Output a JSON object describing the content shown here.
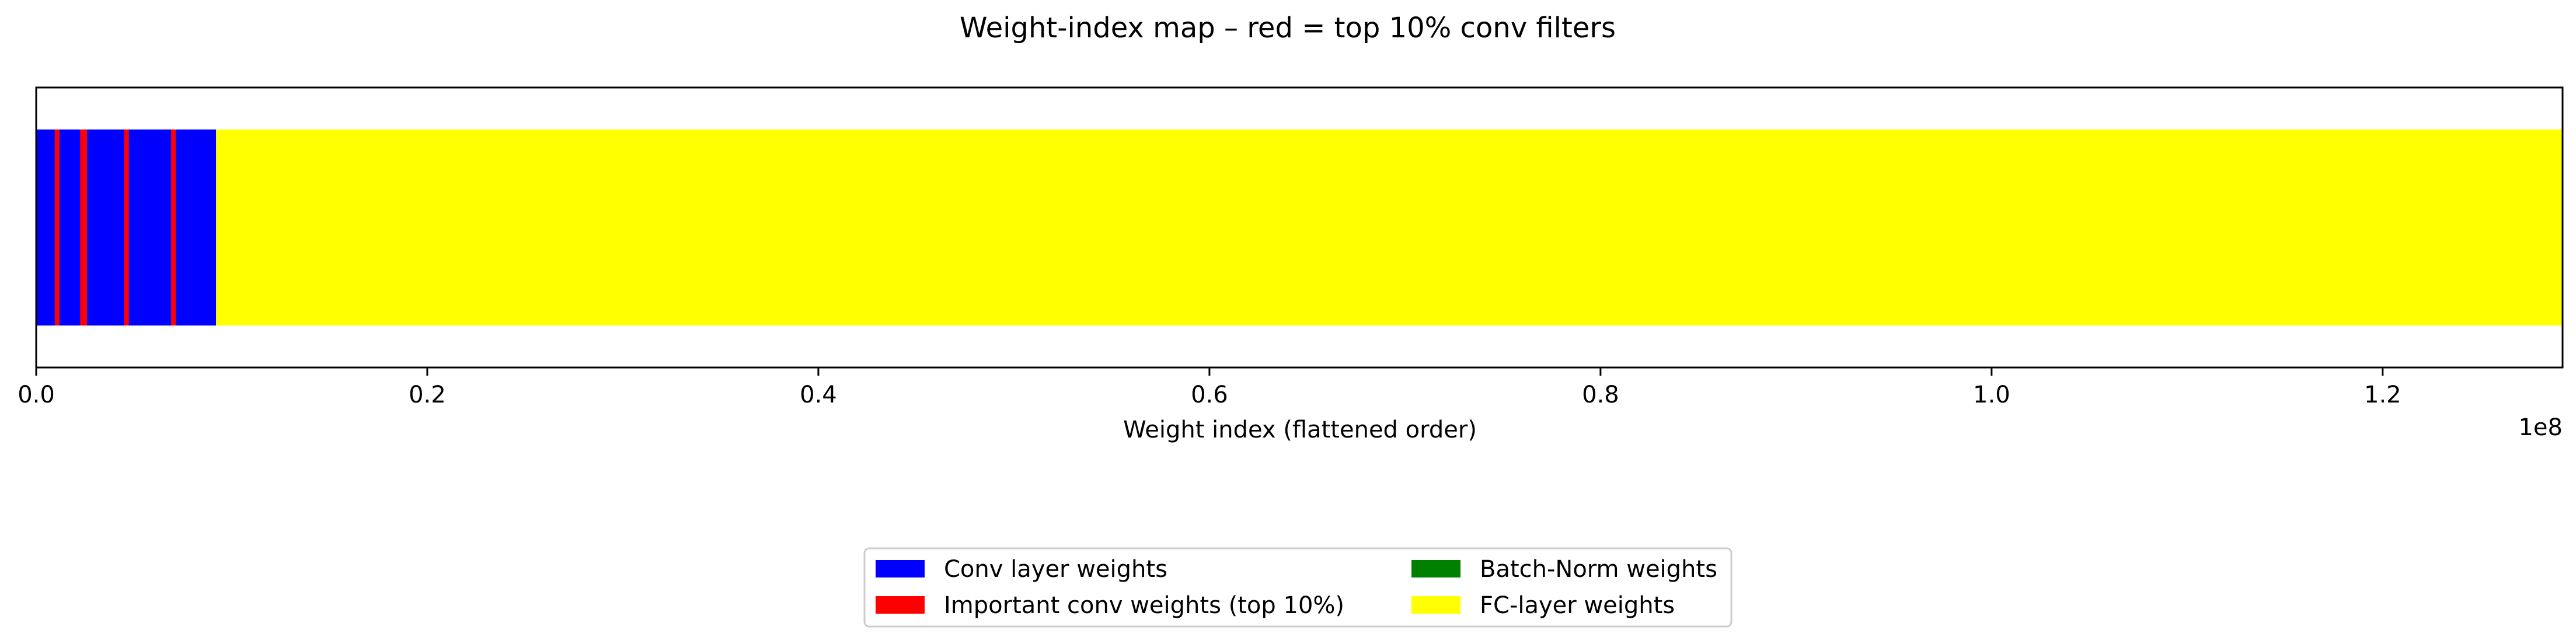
{
  "chart_data": {
    "type": "bar",
    "orientation": "horizontal-strip",
    "title": "Weight-index map – red = top 10% conv filters",
    "xlabel": "Weight index (flattened order)",
    "ylabel": "",
    "x_offset_label": "1e8",
    "xlim": [
      0,
      129200000
    ],
    "x_ticks": [
      0,
      20000000,
      40000000,
      60000000,
      80000000,
      100000000,
      120000000
    ],
    "x_tick_labels": [
      "0.0",
      "0.2",
      "0.4",
      "0.6",
      "0.8",
      "1.0",
      "1.2"
    ],
    "grid": false,
    "segments": [
      {
        "series": "Conv layer weights",
        "start": 0,
        "end": 9200000
      },
      {
        "series": "FC-layer weights",
        "start": 9200000,
        "end": 129200000
      }
    ],
    "important_markers": [
      {
        "series": "Important conv weights (top 10%)",
        "start": 950000,
        "end": 1150000
      },
      {
        "series": "Important conv weights (top 10%)",
        "start": 2250000,
        "end": 2600000
      },
      {
        "series": "Important conv weights (top 10%)",
        "start": 4500000,
        "end": 4700000
      },
      {
        "series": "Important conv weights (top 10%)",
        "start": 6900000,
        "end": 7100000
      }
    ],
    "legend": {
      "placement": "bottom-center",
      "columns": 2,
      "entries": [
        {
          "label": "Conv layer weights",
          "color": "#0000ff"
        },
        {
          "label": "Important conv weights (top 10%)",
          "color": "#ff0000"
        },
        {
          "label": "Batch-Norm weights",
          "color": "#008000"
        },
        {
          "label": "FC-layer weights",
          "color": "#ffff00"
        }
      ]
    },
    "colors": {
      "Conv layer weights": "#0000ff",
      "Important conv weights (top 10%)": "#ff0000",
      "Batch-Norm weights": "#008000",
      "FC-layer weights": "#ffff00"
    }
  }
}
